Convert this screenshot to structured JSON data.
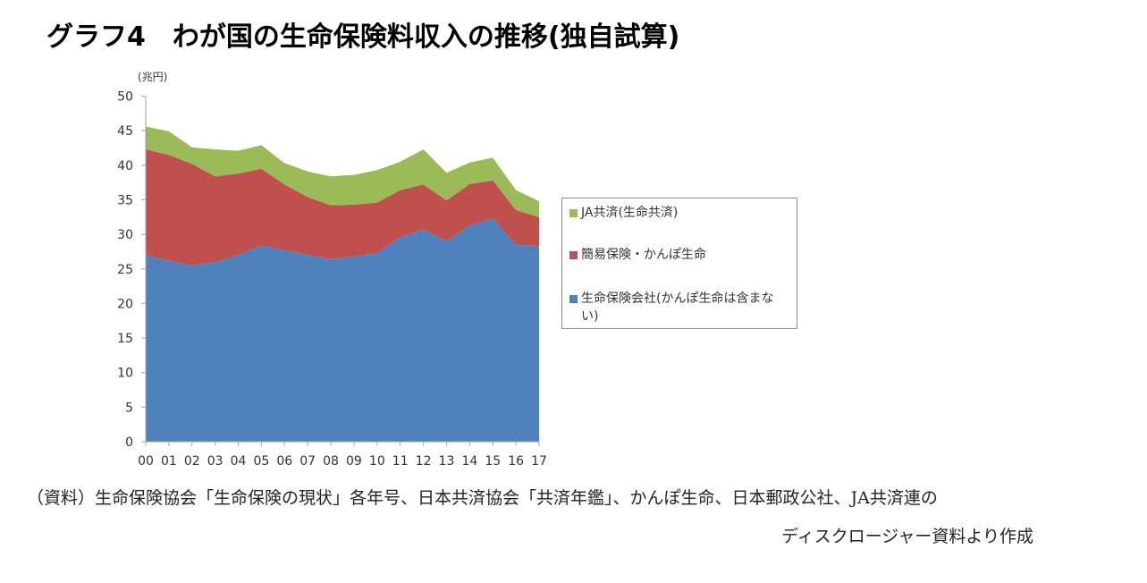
{
  "title": "グラフ4　わが国の生命保険料収入の推移(独自試算)",
  "unit_label": "(兆円)",
  "source": {
    "line1": "（資料）生命保険協会「生命保険の現状」各年号、日本共済協会「共済年鑑」、かんぽ生命、日本郵政公社、JA共済連の",
    "line2": "ディスクロージャー資料より作成"
  },
  "legend": [
    {
      "label": "JA共済(生命共済)",
      "color": "#9bbb59"
    },
    {
      "label": "簡易保険・かんぽ生命",
      "color": "#c0504d"
    },
    {
      "label": "生命保険会社(かんぽ生命は含まない)",
      "color": "#4f81bd"
    }
  ],
  "chart_data": {
    "type": "area",
    "stacked": true,
    "title": "わが国の生命保険料収入の推移(独自試算)",
    "xlabel": "",
    "ylabel": "(兆円)",
    "ylim": [
      0,
      50
    ],
    "yticks": [
      0,
      5,
      10,
      15,
      20,
      25,
      30,
      35,
      40,
      45,
      50
    ],
    "grid": false,
    "legend_position": "right",
    "categories": [
      "00",
      "01",
      "02",
      "03",
      "04",
      "05",
      "06",
      "07",
      "08",
      "09",
      "10",
      "11",
      "12",
      "13",
      "14",
      "15",
      "16",
      "17"
    ],
    "series": [
      {
        "name": "生命保険会社(かんぽ生命は含まない)",
        "color": "#4f81bd",
        "values": [
          27.0,
          26.2,
          25.5,
          26.0,
          27.0,
          28.4,
          27.7,
          27.0,
          26.4,
          26.8,
          27.3,
          29.6,
          30.7,
          29.0,
          31.3,
          32.3,
          28.5,
          28.3
        ]
      },
      {
        "name": "簡易保険・かんぽ生命",
        "color": "#c0504d",
        "values": [
          15.3,
          15.3,
          14.7,
          12.4,
          11.8,
          11.1,
          9.5,
          8.4,
          7.8,
          7.5,
          7.3,
          6.8,
          6.5,
          5.9,
          6.0,
          5.5,
          5.0,
          4.2
        ]
      },
      {
        "name": "JA共済(生命共済)",
        "color": "#9bbb59",
        "values": [
          3.3,
          3.4,
          2.4,
          3.9,
          3.3,
          3.4,
          3.1,
          3.7,
          4.2,
          4.3,
          4.7,
          4.1,
          5.1,
          4.0,
          3.1,
          3.3,
          2.9,
          2.3
        ]
      }
    ],
    "stacked_totals": [
      45.6,
      44.9,
      42.6,
      42.3,
      42.1,
      42.9,
      40.3,
      39.1,
      38.4,
      38.6,
      39.3,
      40.5,
      42.3,
      38.9,
      40.4,
      41.1,
      36.4,
      34.8
    ]
  }
}
